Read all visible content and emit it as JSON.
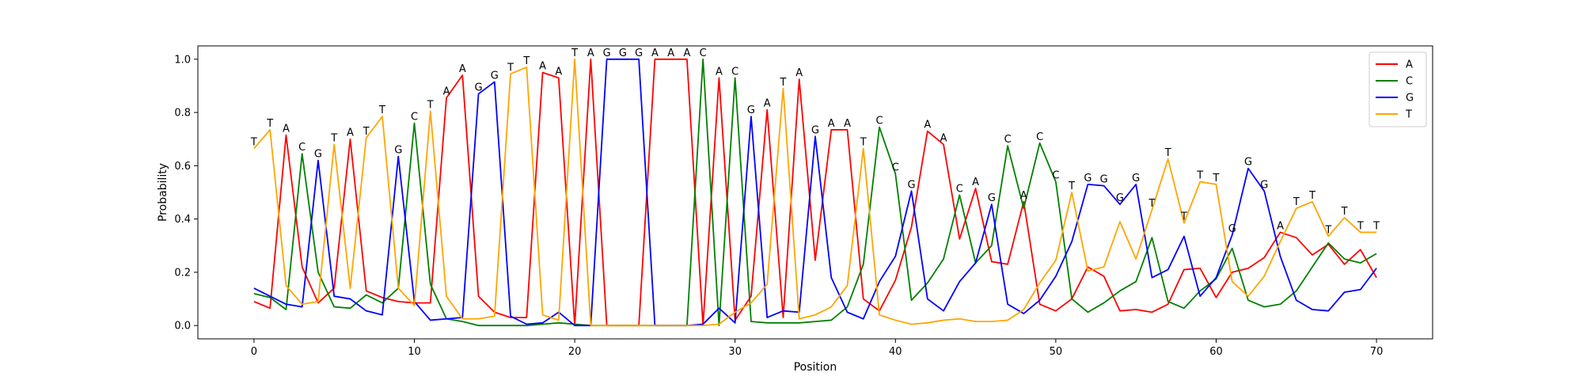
{
  "chart_data": {
    "type": "line",
    "xlabel": "Position",
    "ylabel": "Probability",
    "xlim": [
      -3.5,
      73.5
    ],
    "ylim": [
      -0.05,
      1.05
    ],
    "xticks": [
      0,
      10,
      20,
      30,
      40,
      50,
      60,
      70
    ],
    "yticks": [
      0.0,
      0.2,
      0.4,
      0.6,
      0.8,
      1.0
    ],
    "xtick_labels": [
      "0",
      "10",
      "20",
      "30",
      "40",
      "50",
      "60",
      "70"
    ],
    "ytick_labels": [
      "0.0",
      "0.2",
      "0.4",
      "0.6",
      "0.8",
      "1.0"
    ],
    "grid": false,
    "legend_position": "top-right",
    "x": [
      0,
      1,
      2,
      3,
      4,
      5,
      6,
      7,
      8,
      9,
      10,
      11,
      12,
      13,
      14,
      15,
      16,
      17,
      18,
      19,
      20,
      21,
      22,
      23,
      24,
      25,
      26,
      27,
      28,
      29,
      30,
      31,
      32,
      33,
      34,
      35,
      36,
      37,
      38,
      39,
      40,
      41,
      42,
      43,
      44,
      45,
      46,
      47,
      48,
      49,
      50,
      51,
      52,
      53,
      54,
      55,
      56,
      57,
      58,
      59,
      60,
      61,
      62,
      63,
      64,
      65,
      66,
      67,
      68,
      69,
      70
    ],
    "series": [
      {
        "name": "A",
        "color": "#ff0000",
        "values": [
          0.09,
          0.065,
          0.715,
          0.22,
          0.085,
          0.14,
          0.7,
          0.13,
          0.105,
          0.09,
          0.085,
          0.085,
          0.855,
          0.94,
          0.11,
          0.05,
          0.03,
          0.03,
          0.95,
          0.93,
          0.0,
          1.0,
          0.0,
          0.0,
          0.0,
          1.0,
          1.0,
          1.0,
          0.0,
          0.93,
          0.02,
          0.11,
          0.81,
          0.03,
          0.925,
          0.245,
          0.735,
          0.735,
          0.1,
          0.055,
          0.17,
          0.37,
          0.73,
          0.68,
          0.325,
          0.515,
          0.24,
          0.23,
          0.465,
          0.08,
          0.055,
          0.1,
          0.22,
          0.185,
          0.055,
          0.06,
          0.05,
          0.08,
          0.21,
          0.215,
          0.105,
          0.2,
          0.215,
          0.255,
          0.35,
          0.33,
          0.265,
          0.305,
          0.23,
          0.285,
          0.18
        ]
      },
      {
        "name": "C",
        "color": "#008000",
        "values": [
          0.12,
          0.105,
          0.06,
          0.645,
          0.2,
          0.07,
          0.065,
          0.115,
          0.085,
          0.14,
          0.76,
          0.155,
          0.025,
          0.015,
          0.0,
          0.0,
          0.0,
          0.0,
          0.005,
          0.01,
          0.005,
          0.0,
          0.0,
          0.0,
          0.0,
          0.0,
          0.0,
          0.0,
          1.0,
          0.0,
          0.93,
          0.015,
          0.01,
          0.01,
          0.01,
          0.015,
          0.02,
          0.07,
          0.23,
          0.745,
          0.57,
          0.095,
          0.16,
          0.25,
          0.49,
          0.235,
          0.3,
          0.675,
          0.44,
          0.685,
          0.54,
          0.1,
          0.05,
          0.085,
          0.13,
          0.165,
          0.33,
          0.09,
          0.065,
          0.13,
          0.175,
          0.29,
          0.095,
          0.07,
          0.08,
          0.13,
          0.22,
          0.31,
          0.25,
          0.235,
          0.27
        ]
      },
      {
        "name": "G",
        "color": "#0000ff",
        "values": [
          0.14,
          0.11,
          0.08,
          0.07,
          0.62,
          0.11,
          0.1,
          0.055,
          0.04,
          0.635,
          0.09,
          0.02,
          0.025,
          0.03,
          0.87,
          0.915,
          0.035,
          0.005,
          0.01,
          0.05,
          0.0,
          0.0,
          1.0,
          1.0,
          1.0,
          0.0,
          0.0,
          0.0,
          0.005,
          0.065,
          0.01,
          0.785,
          0.03,
          0.055,
          0.05,
          0.71,
          0.18,
          0.05,
          0.025,
          0.165,
          0.26,
          0.505,
          0.1,
          0.055,
          0.165,
          0.235,
          0.455,
          0.08,
          0.045,
          0.095,
          0.185,
          0.315,
          0.53,
          0.525,
          0.455,
          0.53,
          0.18,
          0.21,
          0.335,
          0.11,
          0.18,
          0.34,
          0.59,
          0.505,
          0.26,
          0.095,
          0.06,
          0.055,
          0.125,
          0.135,
          0.215
        ]
      },
      {
        "name": "T",
        "color": "#ffa500",
        "values": [
          0.665,
          0.735,
          0.15,
          0.08,
          0.09,
          0.68,
          0.14,
          0.705,
          0.785,
          0.14,
          0.075,
          0.805,
          0.11,
          0.025,
          0.025,
          0.035,
          0.945,
          0.97,
          0.04,
          0.02,
          1.0,
          0.0,
          0.0,
          0.0,
          0.0,
          0.0,
          0.0,
          0.0,
          0.0,
          0.005,
          0.05,
          0.085,
          0.155,
          0.89,
          0.025,
          0.04,
          0.07,
          0.15,
          0.665,
          0.04,
          0.02,
          0.005,
          0.01,
          0.02,
          0.025,
          0.015,
          0.015,
          0.02,
          0.06,
          0.16,
          0.245,
          0.5,
          0.205,
          0.22,
          0.39,
          0.25,
          0.435,
          0.625,
          0.385,
          0.54,
          0.53,
          0.165,
          0.11,
          0.185,
          0.315,
          0.44,
          0.465,
          0.335,
          0.405,
          0.35,
          0.35
        ]
      }
    ],
    "point_labels": [
      "T",
      "T",
      "A",
      "C",
      "G",
      "T",
      "A",
      "T",
      "T",
      "G",
      "C",
      "T",
      "A",
      "A",
      "G",
      "G",
      "T",
      "T",
      "A",
      "A",
      "T",
      "A",
      "G",
      "G",
      "G",
      "A",
      "A",
      "A",
      "C",
      "A",
      "C",
      "G",
      "A",
      "T",
      "A",
      "G",
      "A",
      "A",
      "T",
      "C",
      "C",
      "G",
      "A",
      "A",
      "C",
      "A",
      "G",
      "C",
      "A",
      "C",
      "C",
      "T",
      "G",
      "G",
      "G",
      "G",
      "T",
      "T",
      "T",
      "T",
      "T",
      "G",
      "G",
      "G",
      "A",
      "T",
      "T",
      "T",
      "T",
      "T",
      "T"
    ],
    "point_label_values": [
      0.665,
      0.735,
      0.715,
      0.645,
      0.62,
      0.68,
      0.7,
      0.705,
      0.785,
      0.635,
      0.76,
      0.805,
      0.855,
      0.94,
      0.87,
      0.915,
      0.945,
      0.97,
      0.95,
      0.93,
      1.0,
      1.0,
      1.0,
      1.0,
      1.0,
      1.0,
      1.0,
      1.0,
      1.0,
      0.93,
      0.93,
      0.785,
      0.81,
      0.89,
      0.925,
      0.71,
      0.735,
      0.735,
      0.665,
      0.745,
      0.57,
      0.505,
      0.73,
      0.68,
      0.49,
      0.515,
      0.455,
      0.675,
      0.465,
      0.685,
      0.54,
      0.5,
      0.53,
      0.525,
      0.455,
      0.53,
      0.435,
      0.625,
      0.385,
      0.54,
      0.53,
      0.34,
      0.59,
      0.505,
      0.35,
      0.44,
      0.465,
      0.335,
      0.405,
      0.35,
      0.35
    ]
  }
}
